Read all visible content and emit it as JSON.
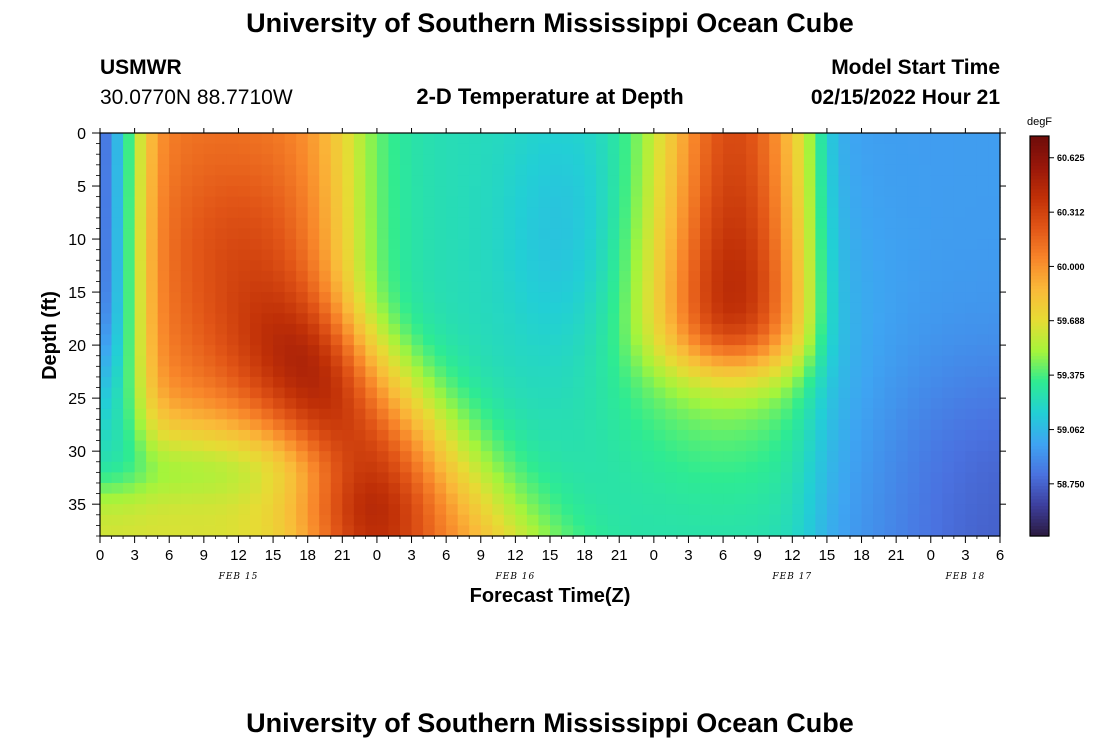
{
  "header": {
    "title": "University of Southern Mississippi Ocean Cube",
    "station": "USMWR",
    "coords": "30.0770N  88.7710W",
    "subtitle": "2-D Temperature at Depth",
    "model_label": "Model Start Time",
    "model_time": "02/15/2022 Hour 21"
  },
  "footer": {
    "title": "University of Southern Mississippi Ocean Cube"
  },
  "chart_data": {
    "type": "heatmap",
    "xlabel": "Forecast Time(Z)",
    "ylabel": "Depth (ft)",
    "x_hours_range": [
      0,
      78
    ],
    "x_tick_labels": [
      "0",
      "3",
      "6",
      "9",
      "12",
      "15",
      "18",
      "21",
      "0",
      "3",
      "6",
      "9",
      "12",
      "15",
      "18",
      "21",
      "0",
      "3",
      "6",
      "9",
      "12",
      "15",
      "18",
      "21",
      "0",
      "3",
      "6"
    ],
    "date_labels": [
      {
        "label": "FEB 15",
        "hour": 12
      },
      {
        "label": "FEB 16",
        "hour": 36
      },
      {
        "label": "FEB 17",
        "hour": 60
      },
      {
        "label": "FEB 18",
        "hour": 75
      }
    ],
    "ylim": [
      0,
      38
    ],
    "y_ticks": [
      0,
      5,
      10,
      15,
      20,
      25,
      30,
      35
    ],
    "colorbar": {
      "unit": "degF",
      "min": 58.45,
      "max": 60.75,
      "tick_values": [
        60.625,
        60.312,
        60.0,
        59.688,
        59.375,
        59.062,
        58.75
      ],
      "tick_labels": [
        "60.625",
        "60.312",
        "60.000",
        "59.688",
        "59.375",
        "59.062",
        "58.750"
      ],
      "colors": [
        "#2b1a3f",
        "#3d3f9e",
        "#4a72e0",
        "#3ea4f2",
        "#22cfd5",
        "#2eeb92",
        "#a5f43b",
        "#e6dc34",
        "#faba39",
        "#f8862a",
        "#e25617",
        "#c03007",
        "#98170a",
        "#6e0c0a"
      ]
    },
    "grid": false
  }
}
